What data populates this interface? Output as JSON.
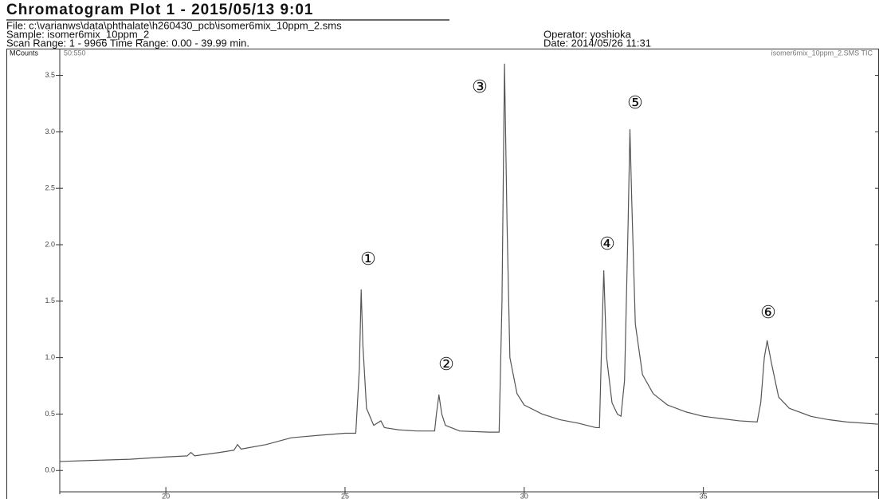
{
  "chart_data": {
    "type": "line",
    "title": "Chromatogram Plot 1 - 2015/05/13 9:01",
    "file": "File: c:\\varianws\\data\\phthalate\\h260430_pcb\\isomer6mix_10ppm_2.sms",
    "sample": "Sample: isomer6mix_10ppm_2",
    "operator": "Operator: yoshioka",
    "scan_range": "Scan Range: 1 - 9966 Time Range: 0.00 - 39.99 min.",
    "date": "Date: 2014/05/26 11:31",
    "y_label": "MCounts",
    "mass_range": "50:550",
    "trace_label": "isomer6mix_10ppm_2.SMS TIC",
    "annotations": [
      "①",
      "②",
      "③",
      "④",
      "⑤",
      "⑥"
    ],
    "color": "#555555",
    "x": [
      17.04,
      18,
      19,
      20,
      20.6,
      20.7,
      20.8,
      21.5,
      21.9,
      22.0,
      22.1,
      22.8,
      23.5,
      24.2,
      25.0,
      25.3,
      25.4,
      25.45,
      25.5,
      25.6,
      25.8,
      26.0,
      26.1,
      26.5,
      27.0,
      27.5,
      27.55,
      27.62,
      27.7,
      27.8,
      28.2,
      29.0,
      29.3,
      29.38,
      29.45,
      29.52,
      29.6,
      29.8,
      30.0,
      30.5,
      31.0,
      31.5,
      32.0,
      32.1,
      32.15,
      32.22,
      32.3,
      32.45,
      32.6,
      32.7,
      32.8,
      32.9,
      32.95,
      33.0,
      33.1,
      33.3,
      33.6,
      34.0,
      34.5,
      35.0,
      35.5,
      36.0,
      36.5,
      36.6,
      36.7,
      36.78,
      36.9,
      37.1,
      37.4,
      38.0,
      38.5,
      39.0,
      39.9
    ],
    "values": [
      0.08,
      0.09,
      0.1,
      0.12,
      0.13,
      0.16,
      0.13,
      0.16,
      0.18,
      0.23,
      0.19,
      0.23,
      0.29,
      0.31,
      0.33,
      0.33,
      0.9,
      1.6,
      1.1,
      0.55,
      0.4,
      0.44,
      0.38,
      0.36,
      0.35,
      0.35,
      0.5,
      0.67,
      0.5,
      0.4,
      0.35,
      0.34,
      0.34,
      1.5,
      3.6,
      2.2,
      1.0,
      0.68,
      0.58,
      0.5,
      0.45,
      0.42,
      0.38,
      0.38,
      1.0,
      1.77,
      1.0,
      0.6,
      0.5,
      0.48,
      0.8,
      2.2,
      3.02,
      2.4,
      1.3,
      0.85,
      0.68,
      0.58,
      0.52,
      0.48,
      0.46,
      0.44,
      0.43,
      0.6,
      1.0,
      1.15,
      0.95,
      0.65,
      0.55,
      0.48,
      0.45,
      0.43,
      0.41
    ],
    "xlim": [
      17.04,
      39.9
    ],
    "xticks": [
      20,
      25,
      30,
      35
    ],
    "ylim": [
      -0.21,
      3.73
    ],
    "yticks": [
      {
        "value": 0,
        "label": "0.0"
      },
      0.5,
      {
        "value": 1,
        "label": "1.0"
      },
      1.5,
      {
        "value": 2,
        "label": "2.0"
      },
      2.5,
      {
        "value": 3,
        "label": "3.0"
      },
      3.5
    ]
  }
}
